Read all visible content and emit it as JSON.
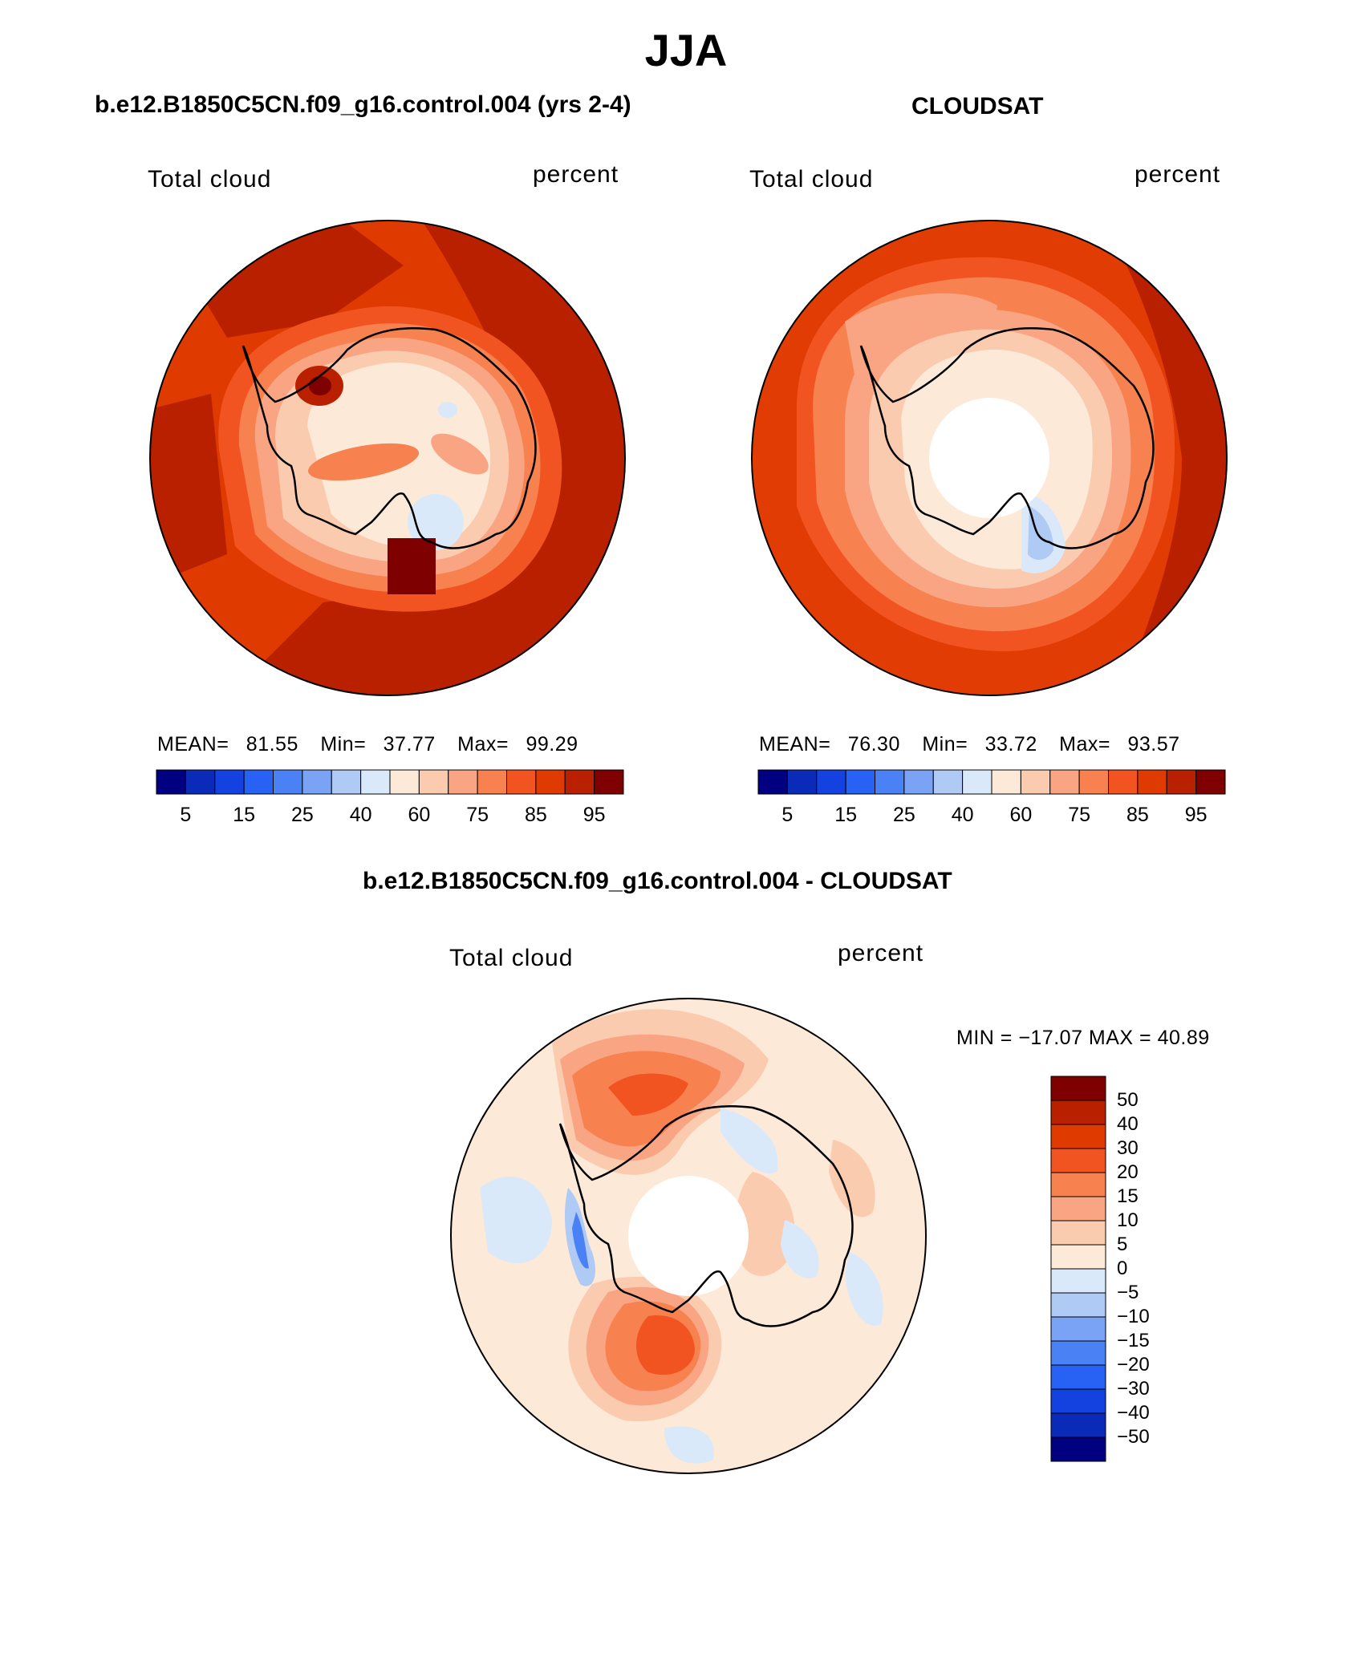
{
  "figure_title": "JJA",
  "panels": {
    "model": {
      "header": "b.e12.B1850C5CN.f09_g16.control.004 (yrs 2-4)",
      "left_label": "Total cloud",
      "right_label": "percent",
      "stats": {
        "mean_label": "MEAN=",
        "mean": "81.55",
        "min_label": "Min=",
        "min": "37.77",
        "max_label": "Max=",
        "max": "99.29"
      },
      "no_data_hole": false
    },
    "obs": {
      "header": "CLOUDSAT",
      "left_label": "Total cloud",
      "right_label": "percent",
      "stats": {
        "mean_label": "MEAN=",
        "mean": "76.30",
        "min_label": "Min=",
        "min": "33.72",
        "max_label": "Max=",
        "max": "93.57"
      },
      "no_data_hole": true
    },
    "diff": {
      "header": "b.e12.B1850C5CN.f09_g16.control.004 - CLOUDSAT",
      "left_label": "Total cloud",
      "right_label": "percent",
      "minmax": "MIN = −17.07 MAX =   40.89",
      "no_data_hole": true
    }
  },
  "colorbars": {
    "absolute": {
      "colors": [
        "#000080",
        "#0a2bb8",
        "#1342e0",
        "#2762f5",
        "#4a82f5",
        "#7aa3f5",
        "#aecaf5",
        "#dae9fa",
        "#fde9d8",
        "#fbcbb0",
        "#f9a584",
        "#f7814f",
        "#f25421",
        "#df3a00",
        "#b82000",
        "#7f0000"
      ],
      "tick_labels": [
        "5",
        "15",
        "25",
        "40",
        "60",
        "75",
        "85",
        "95"
      ]
    },
    "difference": {
      "colors": [
        "#7f0000",
        "#b82000",
        "#df3a00",
        "#f25421",
        "#f7814f",
        "#f9a584",
        "#fbcbb0",
        "#fde9d8",
        "#dae9fa",
        "#aecaf5",
        "#7aa3f5",
        "#4a82f5",
        "#2762f5",
        "#1342e0",
        "#0a2bb8",
        "#000080"
      ],
      "tick_labels": [
        "50",
        "40",
        "30",
        "20",
        "15",
        "10",
        "5",
        "0",
        "−5",
        "−10",
        "−15",
        "−20",
        "−30",
        "−40",
        "−50"
      ]
    }
  }
}
